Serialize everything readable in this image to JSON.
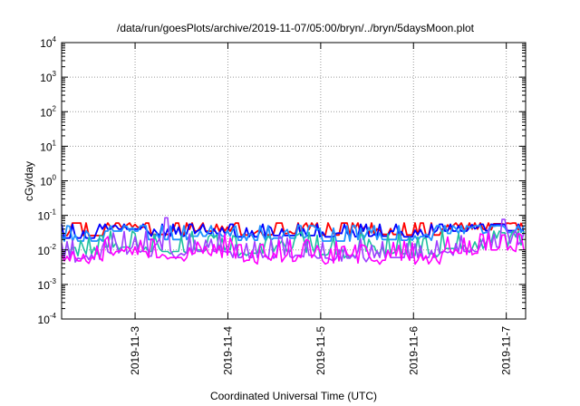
{
  "chart_data": {
    "type": "line",
    "title": "/data/run/goesPlots/archive/2019-11-07/05:00/bryn/../bryn/5daysMoon.plot",
    "xlabel": "Coordinated Universal Time (UTC)",
    "ylabel": "cGy/day",
    "y_scale": "log",
    "ylim": [
      0.0001,
      10000
    ],
    "y_ticks": [
      {
        "base": "10",
        "exp": "-4",
        "value": 0.0001
      },
      {
        "base": "10",
        "exp": "-3",
        "value": 0.001
      },
      {
        "base": "10",
        "exp": "-2",
        "value": 0.01
      },
      {
        "base": "10",
        "exp": "-1",
        "value": 0.1
      },
      {
        "base": "10",
        "exp": "0",
        "value": 1
      },
      {
        "base": "10",
        "exp": "1",
        "value": 10
      },
      {
        "base": "10",
        "exp": "2",
        "value": 100
      },
      {
        "base": "10",
        "exp": "3",
        "value": 1000
      },
      {
        "base": "10",
        "exp": "4",
        "value": 10000
      }
    ],
    "xlim": [
      "2019-11-02 05:00",
      "2019-11-07 05:00"
    ],
    "x_ticks": [
      "2019-11-3",
      "2019-11-4",
      "2019-11-5",
      "2019-11-6",
      "2019-11-7"
    ],
    "grid": true,
    "series": [
      {
        "color": "#ff0000",
        "base": 0.027,
        "spike": 0.06,
        "x": [
          "2019-11-02 07:00",
          "2019-11-02 12:00",
          "2019-11-03 00:00",
          "2019-11-03 12:00",
          "2019-11-04 00:00",
          "2019-11-04 12:00",
          "2019-11-05 00:00",
          "2019-11-05 12:00",
          "2019-11-06 00:00",
          "2019-11-06 12:00",
          "2019-11-07 00:00",
          "2019-11-07 05:00"
        ],
        "y": [
          0.026,
          0.045,
          0.028,
          0.035,
          0.027,
          0.03,
          0.027,
          0.028,
          0.027,
          0.04,
          0.038,
          0.035
        ]
      },
      {
        "color": "#0000ff",
        "base": 0.024,
        "spike": 0.055,
        "x": [
          "2019-11-02 07:00",
          "2019-11-02 12:00",
          "2019-11-03 00:00",
          "2019-11-03 12:00",
          "2019-11-04 00:00",
          "2019-11-04 12:00",
          "2019-11-05 00:00",
          "2019-11-05 12:00",
          "2019-11-06 00:00",
          "2019-11-06 12:00",
          "2019-11-07 00:00",
          "2019-11-07 05:00"
        ],
        "y": [
          0.022,
          0.04,
          0.025,
          0.03,
          0.024,
          0.026,
          0.024,
          0.025,
          0.024,
          0.035,
          0.036,
          0.03
        ]
      },
      {
        "color": "#1e90ff",
        "base": 0.018,
        "spike": 0.05,
        "x": [
          "2019-11-02 07:00",
          "2019-11-02 12:00",
          "2019-11-03 00:00",
          "2019-11-03 12:00",
          "2019-11-04 00:00",
          "2019-11-04 12:00",
          "2019-11-05 00:00",
          "2019-11-05 12:00",
          "2019-11-06 00:00",
          "2019-11-06 12:00",
          "2019-11-07 00:00",
          "2019-11-07 05:00"
        ],
        "y": [
          0.018,
          0.035,
          0.02,
          0.025,
          0.019,
          0.022,
          0.018,
          0.02,
          0.019,
          0.03,
          0.032,
          0.025
        ]
      },
      {
        "color": "#20c0a0",
        "base": 0.0075,
        "spike": 0.035,
        "x": [
          "2019-11-02 07:00",
          "2019-11-02 12:00",
          "2019-11-03 00:00",
          "2019-11-03 12:00",
          "2019-11-04 00:00",
          "2019-11-04 12:00",
          "2019-11-05 00:00",
          "2019-11-05 12:00",
          "2019-11-06 00:00",
          "2019-11-06 12:00",
          "2019-11-07 00:00",
          "2019-11-07 05:00"
        ],
        "y": [
          0.0075,
          0.012,
          0.009,
          0.01,
          0.008,
          0.009,
          0.0075,
          0.008,
          0.0078,
          0.011,
          0.015,
          0.012
        ]
      },
      {
        "color": "#a040ff",
        "base": 0.0058,
        "spike": 0.085,
        "x": [
          "2019-11-02 07:00",
          "2019-11-02 12:00",
          "2019-11-03 00:00",
          "2019-11-03 12:00",
          "2019-11-04 00:00",
          "2019-11-04 12:00",
          "2019-11-05 00:00",
          "2019-11-05 12:00",
          "2019-11-06 00:00",
          "2019-11-06 12:00",
          "2019-11-07 00:00",
          "2019-11-07 05:00"
        ],
        "y": [
          0.0058,
          0.01,
          0.007,
          0.009,
          0.006,
          0.007,
          0.0058,
          0.006,
          0.006,
          0.009,
          0.012,
          0.01
        ]
      },
      {
        "color": "#ff00ff",
        "base": 0.0048,
        "spike": 0.03,
        "x": [
          "2019-11-02 07:00",
          "2019-11-02 12:00",
          "2019-11-03 00:00",
          "2019-11-03 12:00",
          "2019-11-04 00:00",
          "2019-11-04 12:00",
          "2019-11-05 00:00",
          "2019-11-05 12:00",
          "2019-11-06 00:00",
          "2019-11-06 12:00",
          "2019-11-07 00:00",
          "2019-11-07 05:00"
        ],
        "y": [
          0.0048,
          0.009,
          0.006,
          0.008,
          0.005,
          0.006,
          0.0048,
          0.005,
          0.005,
          0.008,
          0.01,
          0.009
        ]
      }
    ]
  }
}
